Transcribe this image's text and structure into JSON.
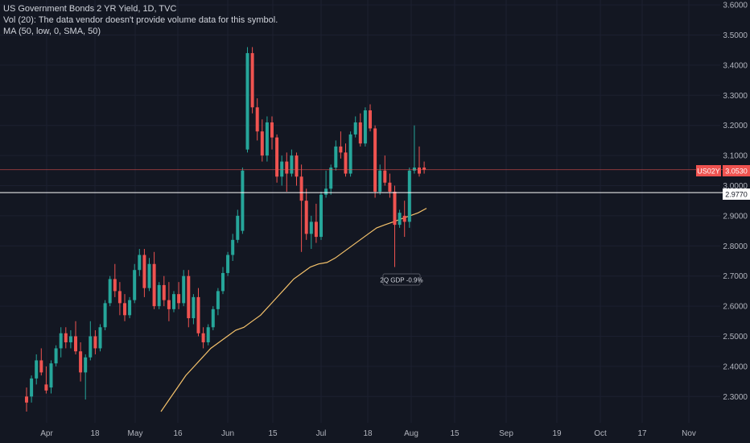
{
  "legend": {
    "title": "US Government Bonds 2 YR Yield, 1D, TVC",
    "volume_note": "Vol (20): The data vendor doesn't provide volume data for this symbol.",
    "ma_label": "MA (50, low, 0, SMA, 50)"
  },
  "price_tag": {
    "symbol": "US02Y",
    "value": "3.0530",
    "color": "#ef5350"
  },
  "hline_tag": {
    "value": "2.9770"
  },
  "annotation": {
    "text": "2Q GDP -0.9%"
  },
  "colors": {
    "up": "#26a69a",
    "down": "#ef5350",
    "ma": "#f5c26b",
    "background": "#131722"
  },
  "chart_data": {
    "type": "candlestick",
    "title": "US Government Bonds 2 YR Yield, 1D, TVC",
    "ylim": [
      2.25,
      3.6
    ],
    "yticks": [
      "3.6000",
      "3.5000",
      "3.4000",
      "3.3000",
      "3.2000",
      "3.1000",
      "3.0000",
      "2.9000",
      "2.8000",
      "2.7000",
      "2.6000",
      "2.5000",
      "2.4000",
      "2.3000"
    ],
    "xticks": [
      "Apr",
      "18",
      "May",
      "16",
      "Jun",
      "15",
      "Jul",
      "18",
      "Aug",
      "15",
      "Sep",
      "19",
      "Oct",
      "17",
      "Nov"
    ],
    "last_price": 3.053,
    "horizontal_line": 2.977,
    "candles": [
      {
        "o": 2.3,
        "h": 2.33,
        "l": 2.25,
        "c": 2.28
      },
      {
        "o": 2.3,
        "h": 2.37,
        "l": 2.28,
        "c": 2.36
      },
      {
        "o": 2.36,
        "h": 2.44,
        "l": 2.34,
        "c": 2.42
      },
      {
        "o": 2.42,
        "h": 2.46,
        "l": 2.37,
        "c": 2.38
      },
      {
        "o": 2.34,
        "h": 2.4,
        "l": 2.31,
        "c": 2.32
      },
      {
        "o": 2.33,
        "h": 2.42,
        "l": 2.31,
        "c": 2.41
      },
      {
        "o": 2.41,
        "h": 2.47,
        "l": 2.4,
        "c": 2.46
      },
      {
        "o": 2.46,
        "h": 2.53,
        "l": 2.43,
        "c": 2.51
      },
      {
        "o": 2.51,
        "h": 2.53,
        "l": 2.46,
        "c": 2.48
      },
      {
        "o": 2.48,
        "h": 2.52,
        "l": 2.46,
        "c": 2.5
      },
      {
        "o": 2.5,
        "h": 2.55,
        "l": 2.44,
        "c": 2.45
      },
      {
        "o": 2.45,
        "h": 2.48,
        "l": 2.35,
        "c": 2.38
      },
      {
        "o": 2.38,
        "h": 2.44,
        "l": 2.29,
        "c": 2.43
      },
      {
        "o": 2.43,
        "h": 2.55,
        "l": 2.42,
        "c": 2.5
      },
      {
        "o": 2.5,
        "h": 2.52,
        "l": 2.44,
        "c": 2.46
      },
      {
        "o": 2.46,
        "h": 2.54,
        "l": 2.45,
        "c": 2.53
      },
      {
        "o": 2.53,
        "h": 2.62,
        "l": 2.52,
        "c": 2.61
      },
      {
        "o": 2.61,
        "h": 2.7,
        "l": 2.6,
        "c": 2.69
      },
      {
        "o": 2.69,
        "h": 2.74,
        "l": 2.63,
        "c": 2.65
      },
      {
        "o": 2.65,
        "h": 2.68,
        "l": 2.57,
        "c": 2.61
      },
      {
        "o": 2.61,
        "h": 2.64,
        "l": 2.55,
        "c": 2.57
      },
      {
        "o": 2.57,
        "h": 2.63,
        "l": 2.56,
        "c": 2.62
      },
      {
        "o": 2.62,
        "h": 2.74,
        "l": 2.61,
        "c": 2.72
      },
      {
        "o": 2.72,
        "h": 2.79,
        "l": 2.7,
        "c": 2.77
      },
      {
        "o": 2.77,
        "h": 2.79,
        "l": 2.63,
        "c": 2.66
      },
      {
        "o": 2.66,
        "h": 2.76,
        "l": 2.65,
        "c": 2.74
      },
      {
        "o": 2.74,
        "h": 2.78,
        "l": 2.59,
        "c": 2.6
      },
      {
        "o": 2.6,
        "h": 2.68,
        "l": 2.59,
        "c": 2.67
      },
      {
        "o": 2.67,
        "h": 2.7,
        "l": 2.6,
        "c": 2.62
      },
      {
        "o": 2.62,
        "h": 2.68,
        "l": 2.55,
        "c": 2.59
      },
      {
        "o": 2.59,
        "h": 2.65,
        "l": 2.58,
        "c": 2.64
      },
      {
        "o": 2.64,
        "h": 2.68,
        "l": 2.59,
        "c": 2.61
      },
      {
        "o": 2.61,
        "h": 2.72,
        "l": 2.6,
        "c": 2.7
      },
      {
        "o": 2.7,
        "h": 2.72,
        "l": 2.53,
        "c": 2.56
      },
      {
        "o": 2.56,
        "h": 2.64,
        "l": 2.54,
        "c": 2.63
      },
      {
        "o": 2.63,
        "h": 2.66,
        "l": 2.5,
        "c": 2.51
      },
      {
        "o": 2.51,
        "h": 2.53,
        "l": 2.46,
        "c": 2.48
      },
      {
        "o": 2.48,
        "h": 2.54,
        "l": 2.47,
        "c": 2.53
      },
      {
        "o": 2.53,
        "h": 2.6,
        "l": 2.52,
        "c": 2.59
      },
      {
        "o": 2.59,
        "h": 2.66,
        "l": 2.57,
        "c": 2.65
      },
      {
        "o": 2.65,
        "h": 2.73,
        "l": 2.64,
        "c": 2.71
      },
      {
        "o": 2.71,
        "h": 2.78,
        "l": 2.7,
        "c": 2.77
      },
      {
        "o": 2.77,
        "h": 2.84,
        "l": 2.75,
        "c": 2.82
      },
      {
        "o": 2.82,
        "h": 2.92,
        "l": 2.81,
        "c": 2.9
      },
      {
        "o": 2.85,
        "h": 3.06,
        "l": 2.84,
        "c": 3.05
      },
      {
        "o": 3.12,
        "h": 3.46,
        "l": 3.11,
        "c": 3.44
      },
      {
        "o": 3.44,
        "h": 3.46,
        "l": 3.24,
        "c": 3.26
      },
      {
        "o": 3.26,
        "h": 3.29,
        "l": 3.15,
        "c": 3.18
      },
      {
        "o": 3.18,
        "h": 3.22,
        "l": 3.08,
        "c": 3.1
      },
      {
        "o": 3.1,
        "h": 3.23,
        "l": 3.08,
        "c": 3.21
      },
      {
        "o": 3.21,
        "h": 3.23,
        "l": 3.12,
        "c": 3.16
      },
      {
        "o": 3.16,
        "h": 3.17,
        "l": 3.01,
        "c": 3.03
      },
      {
        "o": 3.03,
        "h": 3.1,
        "l": 3.0,
        "c": 3.08
      },
      {
        "o": 3.08,
        "h": 3.11,
        "l": 2.98,
        "c": 3.04
      },
      {
        "o": 3.04,
        "h": 3.12,
        "l": 3.03,
        "c": 3.1
      },
      {
        "o": 3.1,
        "h": 3.11,
        "l": 3.0,
        "c": 3.03
      },
      {
        "o": 3.03,
        "h": 3.07,
        "l": 2.78,
        "c": 2.95
      },
      {
        "o": 2.95,
        "h": 2.99,
        "l": 2.82,
        "c": 2.84
      },
      {
        "o": 2.84,
        "h": 2.9,
        "l": 2.79,
        "c": 2.88
      },
      {
        "o": 2.88,
        "h": 2.94,
        "l": 2.81,
        "c": 2.83
      },
      {
        "o": 2.83,
        "h": 2.98,
        "l": 2.82,
        "c": 2.97
      },
      {
        "o": 2.97,
        "h": 3.05,
        "l": 2.96,
        "c": 2.99
      },
      {
        "o": 2.99,
        "h": 3.07,
        "l": 2.97,
        "c": 3.06
      },
      {
        "o": 3.06,
        "h": 3.15,
        "l": 3.05,
        "c": 3.13
      },
      {
        "o": 3.13,
        "h": 3.18,
        "l": 3.09,
        "c": 3.11
      },
      {
        "o": 3.11,
        "h": 3.14,
        "l": 3.03,
        "c": 3.04
      },
      {
        "o": 3.04,
        "h": 3.18,
        "l": 3.03,
        "c": 3.17
      },
      {
        "o": 3.17,
        "h": 3.23,
        "l": 3.16,
        "c": 3.21
      },
      {
        "o": 3.21,
        "h": 3.24,
        "l": 3.13,
        "c": 3.14
      },
      {
        "o": 3.14,
        "h": 3.26,
        "l": 3.13,
        "c": 3.25
      },
      {
        "o": 3.25,
        "h": 3.27,
        "l": 3.18,
        "c": 3.19
      },
      {
        "o": 3.19,
        "h": 3.2,
        "l": 2.96,
        "c": 2.98
      },
      {
        "o": 2.98,
        "h": 3.07,
        "l": 2.97,
        "c": 3.05
      },
      {
        "o": 3.05,
        "h": 3.1,
        "l": 3.0,
        "c": 3.01
      },
      {
        "o": 3.01,
        "h": 3.04,
        "l": 2.96,
        "c": 2.98
      },
      {
        "o": 2.98,
        "h": 3.0,
        "l": 2.73,
        "c": 2.87
      },
      {
        "o": 2.87,
        "h": 2.92,
        "l": 2.86,
        "c": 2.91
      },
      {
        "o": 2.9,
        "h": 2.95,
        "l": 2.83,
        "c": 2.88
      },
      {
        "o": 2.88,
        "h": 3.06,
        "l": 2.86,
        "c": 3.05
      },
      {
        "o": 3.05,
        "h": 3.2,
        "l": 3.04,
        "c": 3.06
      },
      {
        "o": 3.06,
        "h": 3.13,
        "l": 3.03,
        "c": 3.04
      },
      {
        "o": 3.06,
        "h": 3.08,
        "l": 3.04,
        "c": 3.053
      }
    ],
    "ma_series": [
      2.25,
      2.29,
      2.33,
      2.37,
      2.4,
      2.43,
      2.46,
      2.48,
      2.5,
      2.52,
      2.53,
      2.55,
      2.57,
      2.6,
      2.63,
      2.66,
      2.69,
      2.71,
      2.73,
      2.74,
      2.745,
      2.76,
      2.78,
      2.8,
      2.82,
      2.84,
      2.86,
      2.87,
      2.88,
      2.89,
      2.9,
      2.91,
      2.925
    ]
  }
}
